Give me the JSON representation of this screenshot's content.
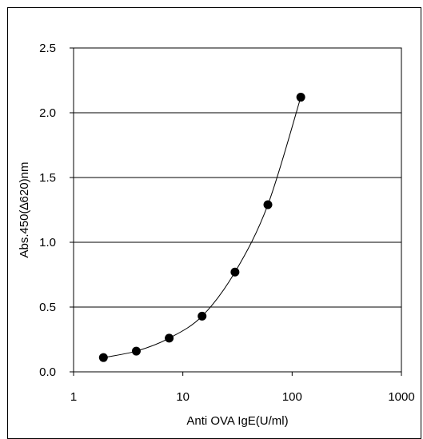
{
  "chart_data": {
    "type": "scatter",
    "title": "",
    "xlabel": "Anti OVA IgE(U/ml)",
    "ylabel": "Abs.450(∆620)nm",
    "x_scale": "log",
    "xlim": [
      1,
      1000
    ],
    "ylim": [
      0,
      2.5
    ],
    "x_ticks": [
      "1",
      "10",
      "100",
      "1000"
    ],
    "y_ticks": [
      "0.0",
      "0.5",
      "1.0",
      "1.5",
      "2.0",
      "2.5"
    ],
    "grid": "horizontal",
    "legend": "none",
    "series": [
      {
        "x": [
          1.875,
          3.75,
          7.5,
          15,
          30,
          60,
          120
        ],
        "y": [
          0.11,
          0.16,
          0.26,
          0.43,
          0.77,
          1.29,
          2.12
        ],
        "marker": "circle",
        "fit_line": true
      }
    ],
    "colors": {
      "marker": "#000000",
      "line": "#000000",
      "grid": "#000000"
    }
  }
}
